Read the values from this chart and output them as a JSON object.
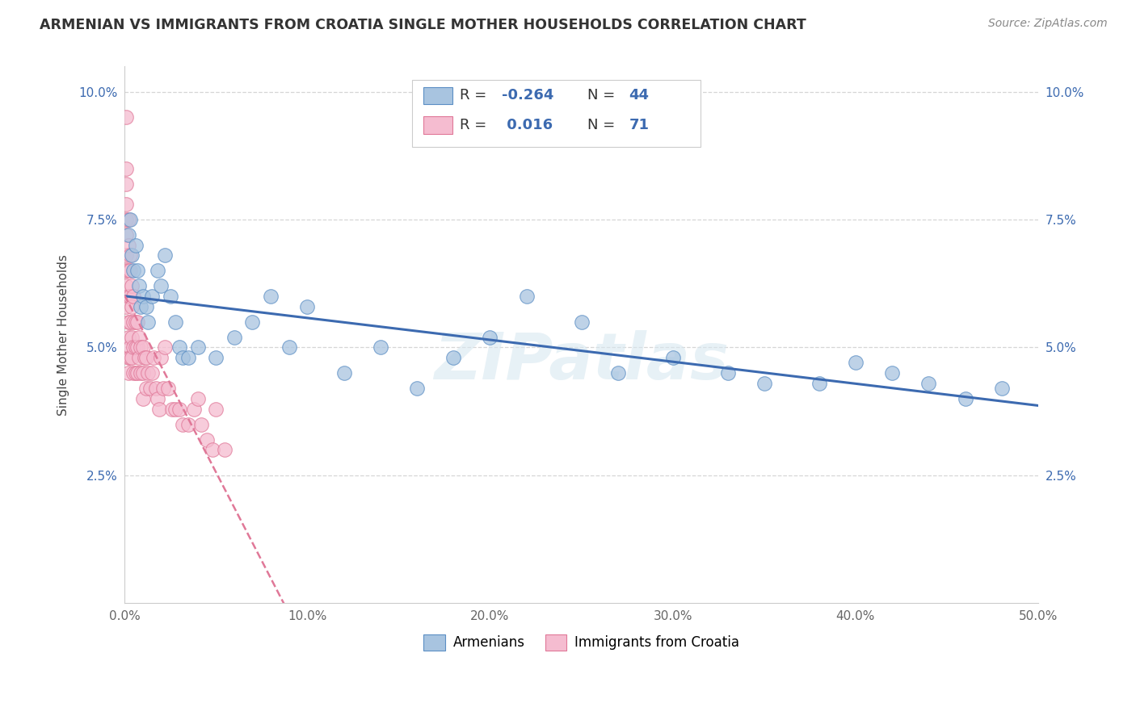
{
  "title": "ARMENIAN VS IMMIGRANTS FROM CROATIA SINGLE MOTHER HOUSEHOLDS CORRELATION CHART",
  "source": "Source: ZipAtlas.com",
  "ylabel": "Single Mother Households",
  "xlim": [
    0.0,
    0.5
  ],
  "ylim": [
    0.0,
    0.105
  ],
  "ytick_vals": [
    0.025,
    0.05,
    0.075,
    0.1
  ],
  "ytick_labels": [
    "2.5%",
    "5.0%",
    "7.5%",
    "10.0%"
  ],
  "xtick_vals": [
    0.0,
    0.1,
    0.2,
    0.3,
    0.4,
    0.5
  ],
  "xtick_labels": [
    "0.0%",
    "10.0%",
    "20.0%",
    "30.0%",
    "40.0%",
    "50.0%"
  ],
  "armenian_color": "#a8c4e0",
  "armenia_edge_color": "#5b8ec4",
  "croatia_color": "#f5bcd0",
  "croatia_edge_color": "#e07898",
  "armenian_line_color": "#3c6ab0",
  "croatia_line_color": "#e07898",
  "armenian_r": -0.264,
  "armenian_n": 44,
  "croatia_r": 0.016,
  "croatia_n": 71,
  "legend_val_color": "#3c6ab0",
  "watermark": "ZIPatlas",
  "armenian_x": [
    0.002,
    0.003,
    0.004,
    0.005,
    0.006,
    0.007,
    0.008,
    0.009,
    0.01,
    0.012,
    0.013,
    0.015,
    0.018,
    0.02,
    0.022,
    0.025,
    0.028,
    0.03,
    0.032,
    0.035,
    0.04,
    0.05,
    0.06,
    0.07,
    0.08,
    0.09,
    0.1,
    0.12,
    0.14,
    0.16,
    0.18,
    0.2,
    0.22,
    0.25,
    0.27,
    0.3,
    0.33,
    0.35,
    0.38,
    0.4,
    0.42,
    0.44,
    0.46,
    0.48
  ],
  "armenian_y": [
    0.072,
    0.075,
    0.068,
    0.065,
    0.07,
    0.065,
    0.062,
    0.058,
    0.06,
    0.058,
    0.055,
    0.06,
    0.065,
    0.062,
    0.068,
    0.06,
    0.055,
    0.05,
    0.048,
    0.048,
    0.05,
    0.048,
    0.052,
    0.055,
    0.06,
    0.05,
    0.058,
    0.045,
    0.05,
    0.042,
    0.048,
    0.052,
    0.06,
    0.055,
    0.045,
    0.048,
    0.045,
    0.043,
    0.043,
    0.047,
    0.045,
    0.043,
    0.04,
    0.042
  ],
  "croatia_x": [
    0.001,
    0.001,
    0.001,
    0.001,
    0.001,
    0.001,
    0.001,
    0.001,
    0.001,
    0.001,
    0.002,
    0.002,
    0.002,
    0.002,
    0.002,
    0.002,
    0.002,
    0.002,
    0.003,
    0.003,
    0.003,
    0.003,
    0.003,
    0.003,
    0.004,
    0.004,
    0.004,
    0.004,
    0.005,
    0.005,
    0.005,
    0.005,
    0.006,
    0.006,
    0.006,
    0.007,
    0.007,
    0.007,
    0.008,
    0.008,
    0.009,
    0.009,
    0.01,
    0.01,
    0.01,
    0.011,
    0.012,
    0.012,
    0.013,
    0.014,
    0.015,
    0.016,
    0.017,
    0.018,
    0.019,
    0.02,
    0.021,
    0.022,
    0.024,
    0.026,
    0.028,
    0.03,
    0.032,
    0.035,
    0.038,
    0.04,
    0.042,
    0.045,
    0.048,
    0.05,
    0.055
  ],
  "croatia_y": [
    0.095,
    0.085,
    0.082,
    0.078,
    0.075,
    0.072,
    0.068,
    0.065,
    0.062,
    0.058,
    0.075,
    0.07,
    0.065,
    0.06,
    0.055,
    0.052,
    0.048,
    0.045,
    0.068,
    0.065,
    0.06,
    0.055,
    0.05,
    0.048,
    0.062,
    0.058,
    0.052,
    0.048,
    0.06,
    0.055,
    0.05,
    0.045,
    0.055,
    0.05,
    0.045,
    0.055,
    0.05,
    0.045,
    0.052,
    0.048,
    0.05,
    0.045,
    0.05,
    0.045,
    0.04,
    0.048,
    0.048,
    0.042,
    0.045,
    0.042,
    0.045,
    0.048,
    0.042,
    0.04,
    0.038,
    0.048,
    0.042,
    0.05,
    0.042,
    0.038,
    0.038,
    0.038,
    0.035,
    0.035,
    0.038,
    0.04,
    0.035,
    0.032,
    0.03,
    0.038,
    0.03
  ]
}
